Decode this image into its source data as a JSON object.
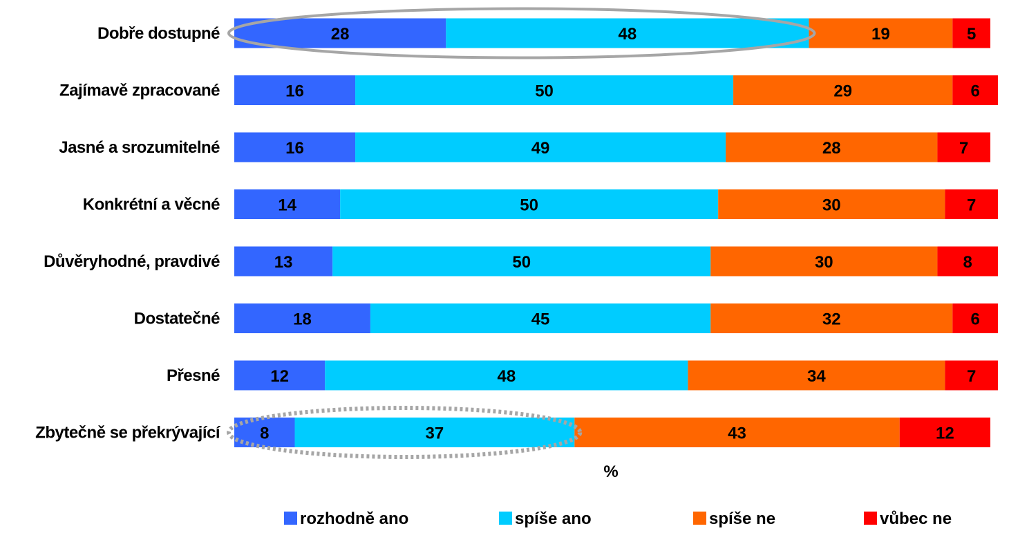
{
  "chart_data": {
    "type": "bar",
    "orientation": "horizontal",
    "stacked": true,
    "xlabel": "%",
    "xlim": [
      0,
      100
    ],
    "grid": false,
    "legend_position": "bottom",
    "categories": [
      "Dobře dostupné",
      "Zajímavě zpracované",
      "Jasné a srozumitelné",
      "Konkrétní a věcné",
      "Důvěryhodné, pravdivé",
      "Dostatečné",
      "Přesné",
      "Zbytečně se překrývající"
    ],
    "series": [
      {
        "name": "rozhodně ano",
        "color": "#3366ff",
        "values": [
          28,
          16,
          16,
          14,
          13,
          18,
          12,
          8
        ]
      },
      {
        "name": "spíše ano",
        "color": "#00ccff",
        "values": [
          48,
          50,
          49,
          50,
          50,
          45,
          48,
          37
        ]
      },
      {
        "name": "spíše ne",
        "color": "#ff6600",
        "values": [
          19,
          29,
          28,
          30,
          30,
          32,
          34,
          43
        ]
      },
      {
        "name": "vůbec ne",
        "color": "#ff0000",
        "values": [
          5,
          6,
          7,
          7,
          8,
          6,
          7,
          12
        ]
      }
    ],
    "highlights": [
      {
        "category_index": 0,
        "series_from": 0,
        "series_to": 1,
        "style": "solid",
        "color": "#a6a6a6"
      },
      {
        "category_index": 7,
        "series_from": 0,
        "series_to": 1,
        "style": "dotted",
        "color": "#a6a6a6"
      }
    ]
  }
}
